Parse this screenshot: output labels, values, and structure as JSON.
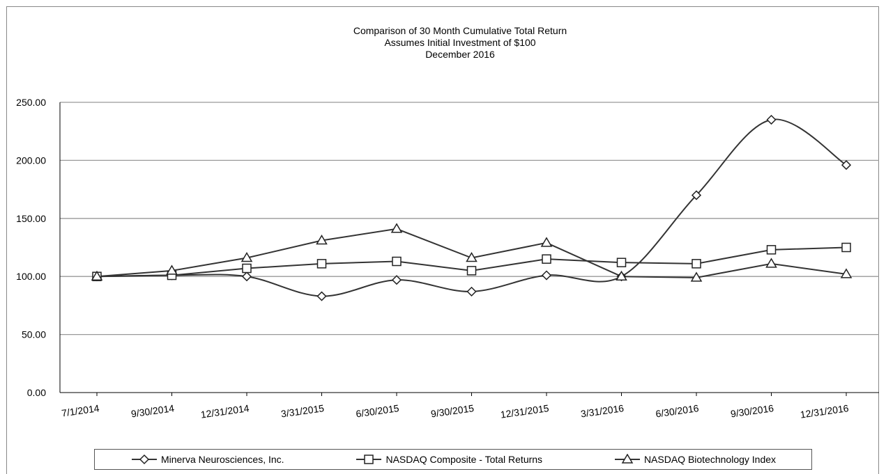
{
  "chart_data": {
    "type": "line",
    "title": "Comparison of 30 Month Cumulative Total Return",
    "subtitle": [
      "Assumes Initial Investment of $100",
      "December 2016"
    ],
    "xlabel": "",
    "ylabel": "",
    "ylim": [
      0,
      250
    ],
    "yticks": [
      "0.00",
      "50.00",
      "100.00",
      "150.00",
      "200.00",
      "250.00"
    ],
    "categories": [
      "7/1/2014",
      "9/30/2014",
      "12/31/2014",
      "3/31/2015",
      "6/30/2015",
      "9/30/2015",
      "12/31/2015",
      "3/31/2016",
      "6/30/2016",
      "9/30/2016",
      "12/31/2016"
    ],
    "grid": true,
    "legend_position": "bottom",
    "series": [
      {
        "name": "Minerva Neurosciences, Inc.",
        "marker": "diamond",
        "smooth": true,
        "values": [
          100,
          101,
          100,
          83,
          97,
          87,
          101,
          100,
          170,
          235,
          196
        ]
      },
      {
        "name": "NASDAQ Composite - Total Returns",
        "marker": "square",
        "smooth": false,
        "values": [
          100,
          101,
          107,
          111,
          113,
          105,
          115,
          112,
          111,
          123,
          125
        ]
      },
      {
        "name": "NASDAQ Biotechnology Index",
        "marker": "triangle",
        "smooth": false,
        "values": [
          100,
          105,
          116,
          131,
          141,
          116,
          129,
          100,
          99,
          111,
          102
        ]
      }
    ]
  }
}
